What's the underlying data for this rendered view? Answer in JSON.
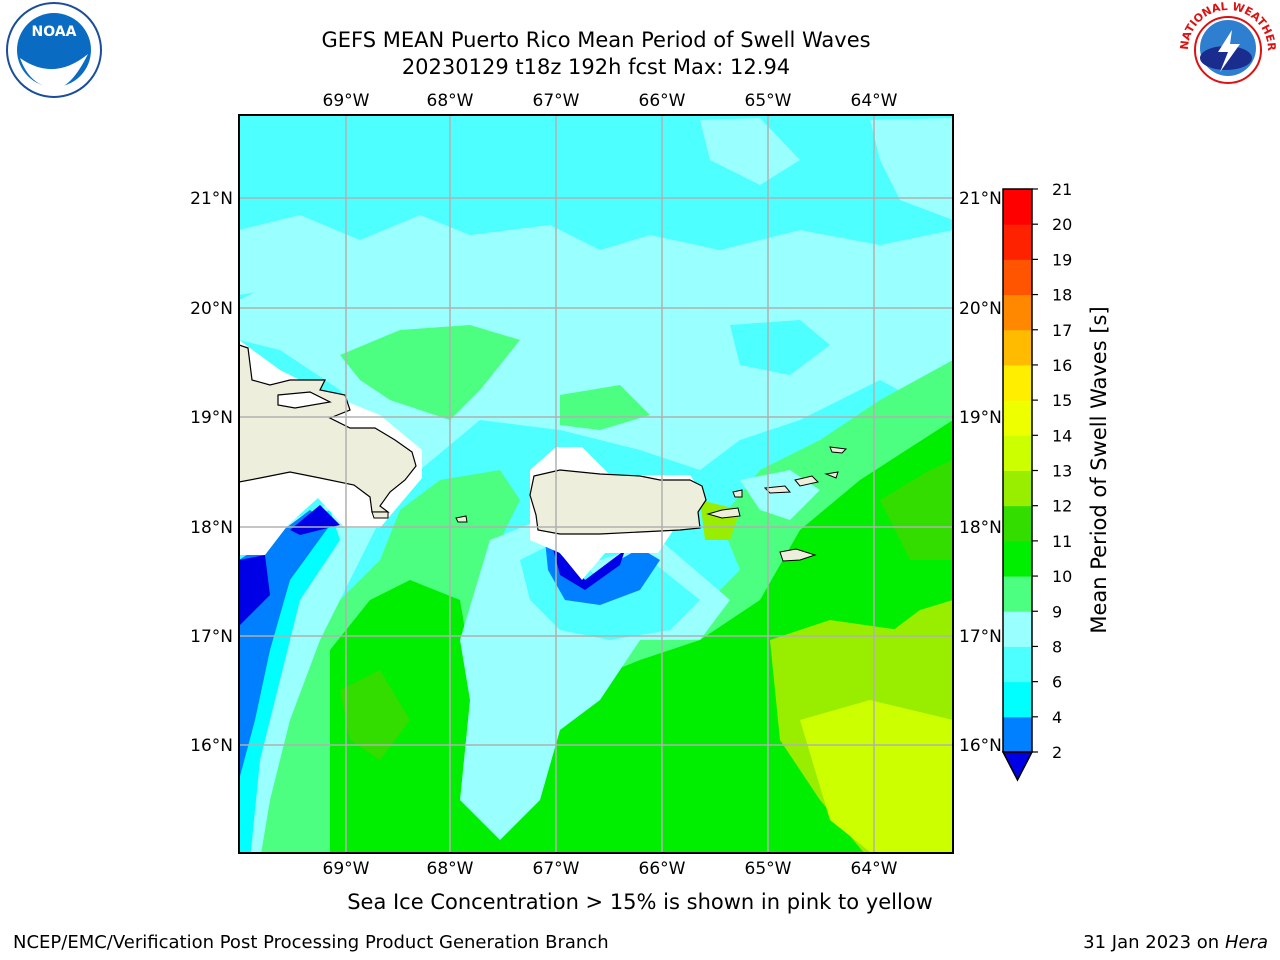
{
  "header": {
    "title_line1": "GEFS MEAN Puerto Rico Mean Period of Swell Waves",
    "title_line2": "20230129 t18z 192h fcst   Max: 12.94",
    "noaa_logo_text": "NOAA",
    "nws_logo_text": "NATIONAL WEATHER SERVICE"
  },
  "map": {
    "lon_labels": [
      "69°W",
      "68°W",
      "67°W",
      "66°W",
      "65°W",
      "64°W"
    ],
    "lat_labels": [
      "21°N",
      "20°N",
      "19°N",
      "18°N",
      "17°N",
      "16°N"
    ],
    "land_color": "#eeeedd",
    "grid_color": "#b0b0b0"
  },
  "colorbar": {
    "label": "Mean Period of Swell Waves [s]",
    "ticks": [
      "2",
      "4",
      "6",
      "8",
      "9",
      "10",
      "11",
      "12",
      "13",
      "14",
      "15",
      "16",
      "17",
      "18",
      "19",
      "20",
      "21"
    ],
    "colors": [
      "#0000e6",
      "#0080ff",
      "#00ffff",
      "#4dffff",
      "#99ffff",
      "#4dff80",
      "#00ee00",
      "#33dd00",
      "#99ee00",
      "#ccff00",
      "#eeff00",
      "#ffee00",
      "#ffbb00",
      "#ff8800",
      "#ff5500",
      "#ff2200",
      "#ff0000"
    ]
  },
  "footer": {
    "caption": "Sea Ice Concentration > 15% is shown in pink to yellow",
    "left": "NCEP/EMC/Verification Post Processing Product Generation Branch",
    "right_prefix": "31 Jan 2023 on ",
    "right_host": "Hera"
  }
}
